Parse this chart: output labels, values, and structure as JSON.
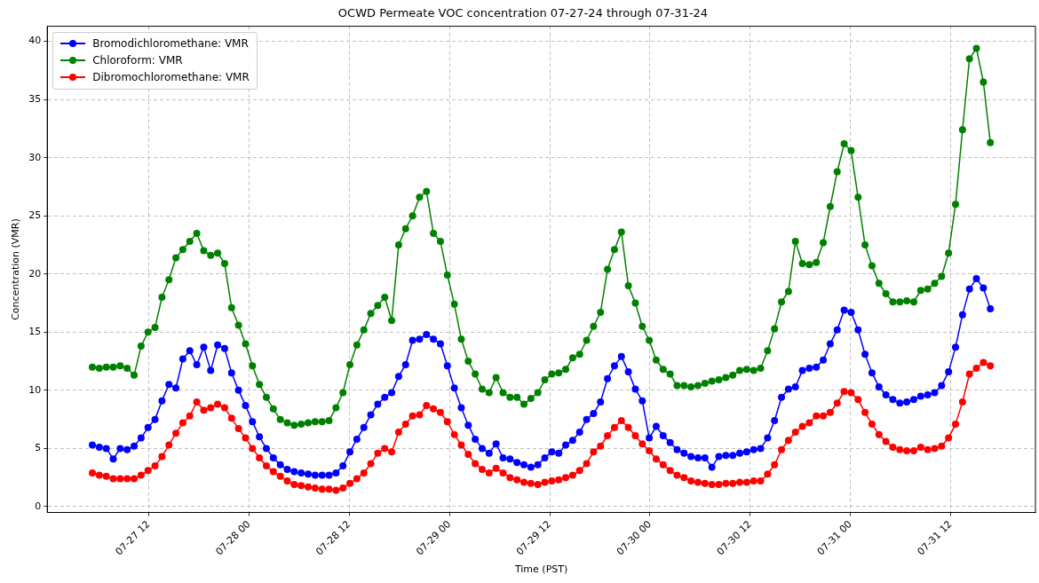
{
  "chart_data": {
    "type": "line",
    "title": "OCWD Permeate VOC concentration 07-27-24 through 07-31-24",
    "xlabel": "Time (PST)",
    "ylabel": "Concentration (VMR)",
    "x": [
      "--07-27T05:15",
      "--07-27T06:05",
      "--07-27T06:55",
      "--07-27T07:45",
      "--07-27T08:35",
      "--07-27T09:25",
      "--07-27T10:15",
      "--07-27T11:05",
      "--07-27T11:55",
      "--07-27T12:45",
      "--07-27T13:35",
      "--07-27T14:25",
      "--07-27T15:15",
      "--07-27T16:05",
      "--07-27T16:55",
      "--07-27T17:45",
      "--07-27T18:35",
      "--07-27T19:25",
      "--07-27T20:15",
      "--07-27T21:05",
      "--07-27T21:55",
      "--07-27T22:45",
      "--07-27T23:35",
      "--07-28T00:25",
      "--07-28T01:15",
      "--07-28T02:05",
      "--07-28T02:55",
      "--07-28T03:45",
      "--07-28T04:35",
      "--07-28T05:25",
      "--07-28T06:15",
      "--07-28T07:05",
      "--07-28T07:55",
      "--07-28T08:45",
      "--07-28T09:35",
      "--07-28T10:25",
      "--07-28T11:15",
      "--07-28T12:05",
      "--07-28T12:55",
      "--07-28T13:45",
      "--07-28T14:35",
      "--07-28T15:25",
      "--07-28T16:15",
      "--07-28T17:05",
      "--07-28T17:55",
      "--07-28T18:45",
      "--07-28T19:35",
      "--07-28T20:25",
      "--07-28T21:15",
      "--07-28T22:05",
      "--07-28T22:55",
      "--07-28T23:45",
      "--07-29T00:35",
      "--07-29T01:25",
      "--07-29T02:15",
      "--07-29T03:05",
      "--07-29T03:55",
      "--07-29T04:45",
      "--07-29T05:35",
      "--07-29T06:25",
      "--07-29T07:15",
      "--07-29T08:05",
      "--07-29T08:55",
      "--07-29T09:45",
      "--07-29T10:35",
      "--07-29T11:25",
      "--07-29T12:15",
      "--07-29T13:05",
      "--07-29T13:55",
      "--07-29T14:45",
      "--07-29T15:35",
      "--07-29T16:25",
      "--07-29T17:15",
      "--07-29T18:05",
      "--07-29T18:55",
      "--07-29T19:45",
      "--07-29T20:35",
      "--07-29T21:25",
      "--07-29T22:15",
      "--07-29T23:05",
      "--07-29T23:55",
      "--07-30T00:45",
      "--07-30T01:35",
      "--07-30T02:25",
      "--07-30T03:15",
      "--07-30T04:05",
      "--07-30T04:55",
      "--07-30T05:45",
      "--07-30T06:35",
      "--07-30T07:25",
      "--07-30T08:15",
      "--07-30T09:05",
      "--07-30T09:55",
      "--07-30T10:45",
      "--07-30T11:35",
      "--07-30T12:25",
      "--07-30T13:15",
      "--07-30T14:05",
      "--07-30T14:55",
      "--07-30T15:45",
      "--07-30T16:35",
      "--07-30T17:25",
      "--07-30T18:15",
      "--07-30T19:05",
      "--07-30T19:55",
      "--07-30T20:45",
      "--07-30T21:35",
      "--07-30T22:25",
      "--07-30T23:15",
      "--07-31T00:05",
      "--07-31T00:55",
      "--07-31T01:45",
      "--07-31T02:35",
      "--07-31T03:25",
      "--07-31T04:15",
      "--07-31T05:05",
      "--07-31T05:55",
      "--07-31T06:45",
      "--07-31T07:35",
      "--07-31T08:25",
      "--07-31T09:15",
      "--07-31T10:05",
      "--07-31T10:55",
      "--07-31T11:45",
      "--07-31T12:35",
      "--07-31T13:25",
      "--07-31T14:15",
      "--07-31T15:05",
      "--07-31T15:55",
      "--07-31T16:45"
    ],
    "series": [
      {
        "name": "Bromodichloromethane: VMR",
        "color": "#0000ff",
        "values": [
          5.3,
          5.1,
          5.0,
          4.1,
          5.0,
          4.9,
          5.2,
          5.9,
          6.8,
          7.5,
          9.1,
          10.5,
          10.2,
          12.7,
          13.4,
          12.2,
          13.7,
          11.7,
          13.9,
          13.6,
          11.5,
          10.0,
          8.7,
          7.3,
          6.0,
          5.0,
          4.2,
          3.6,
          3.2,
          3.0,
          2.9,
          2.8,
          2.7,
          2.7,
          2.7,
          2.9,
          3.5,
          4.7,
          5.8,
          6.8,
          7.9,
          8.8,
          9.4,
          9.8,
          11.2,
          12.2,
          14.3,
          14.4,
          14.8,
          14.4,
          14.0,
          12.1,
          10.2,
          8.5,
          7.0,
          5.8,
          5.0,
          4.6,
          5.4,
          4.2,
          4.1,
          3.8,
          3.6,
          3.4,
          3.6,
          4.2,
          4.7,
          4.6,
          5.3,
          5.7,
          6.4,
          7.5,
          8.0,
          9.0,
          11.0,
          12.1,
          12.9,
          11.6,
          10.1,
          9.1,
          5.9,
          6.9,
          6.1,
          5.5,
          4.9,
          4.6,
          4.3,
          4.2,
          4.2,
          3.4,
          4.3,
          4.4,
          4.4,
          4.6,
          4.7,
          4.9,
          5.0,
          5.9,
          7.4,
          9.4,
          10.1,
          10.3,
          11.7,
          11.9,
          12.0,
          12.6,
          14.0,
          15.2,
          16.9,
          16.7,
          15.2,
          13.1,
          11.5,
          10.3,
          9.6,
          9.2,
          8.9,
          9.0,
          9.2,
          9.5,
          9.6,
          9.8,
          10.4,
          11.6,
          13.7,
          16.5,
          18.7,
          19.6,
          18.8,
          17.0
        ]
      },
      {
        "name": "Chloroform: VMR",
        "color": "#008000",
        "values": [
          12.0,
          11.9,
          12.0,
          12.0,
          12.1,
          11.9,
          11.3,
          13.8,
          15.0,
          15.4,
          18.0,
          19.5,
          21.4,
          22.1,
          22.8,
          23.5,
          22.0,
          21.6,
          21.8,
          20.9,
          17.1,
          15.6,
          14.0,
          12.1,
          10.5,
          9.4,
          8.4,
          7.5,
          7.2,
          7.0,
          7.1,
          7.2,
          7.3,
          7.3,
          7.4,
          8.5,
          9.8,
          12.2,
          13.9,
          15.2,
          16.6,
          17.3,
          18.0,
          16.0,
          22.5,
          23.9,
          25.0,
          26.6,
          27.1,
          23.5,
          22.8,
          19.9,
          17.4,
          14.4,
          12.5,
          11.4,
          10.1,
          9.8,
          11.1,
          9.8,
          9.4,
          9.4,
          8.8,
          9.3,
          9.8,
          10.9,
          11.4,
          11.5,
          11.8,
          12.8,
          13.1,
          14.3,
          15.5,
          16.7,
          20.4,
          22.1,
          23.6,
          19.0,
          17.5,
          15.5,
          14.3,
          12.6,
          11.8,
          11.4,
          10.4,
          10.4,
          10.3,
          10.4,
          10.6,
          10.8,
          10.9,
          11.1,
          11.3,
          11.7,
          11.8,
          11.7,
          11.9,
          13.4,
          15.3,
          17.6,
          18.5,
          22.8,
          20.9,
          20.8,
          21.0,
          22.7,
          25.8,
          28.8,
          31.2,
          30.6,
          26.6,
          22.5,
          20.7,
          19.2,
          18.3,
          17.6,
          17.6,
          17.7,
          17.6,
          18.6,
          18.7,
          19.2,
          19.8,
          21.8,
          26.0,
          32.4,
          38.5,
          39.4,
          36.5,
          31.3
        ]
      },
      {
        "name": "Dibromochloromethane: VMR",
        "color": "#ff0000",
        "values": [
          2.9,
          2.7,
          2.6,
          2.4,
          2.4,
          2.4,
          2.4,
          2.7,
          3.1,
          3.5,
          4.3,
          5.3,
          6.3,
          7.2,
          7.8,
          9.0,
          8.3,
          8.5,
          8.8,
          8.5,
          7.6,
          6.7,
          5.9,
          5.0,
          4.2,
          3.5,
          3.0,
          2.6,
          2.2,
          1.9,
          1.8,
          1.7,
          1.6,
          1.5,
          1.5,
          1.4,
          1.6,
          2.0,
          2.4,
          2.9,
          3.7,
          4.6,
          5.0,
          4.7,
          6.4,
          7.1,
          7.8,
          7.9,
          8.7,
          8.4,
          8.1,
          7.3,
          6.2,
          5.3,
          4.5,
          3.7,
          3.2,
          2.9,
          3.3,
          2.9,
          2.5,
          2.3,
          2.1,
          2.0,
          1.9,
          2.1,
          2.2,
          2.3,
          2.5,
          2.7,
          3.1,
          3.7,
          4.7,
          5.2,
          6.1,
          6.8,
          7.4,
          6.8,
          6.1,
          5.4,
          4.8,
          4.1,
          3.6,
          3.1,
          2.7,
          2.5,
          2.2,
          2.1,
          2.0,
          1.9,
          1.9,
          2.0,
          2.0,
          2.1,
          2.1,
          2.2,
          2.2,
          2.8,
          3.6,
          4.9,
          5.7,
          6.4,
          6.9,
          7.2,
          7.8,
          7.8,
          8.1,
          8.9,
          9.9,
          9.8,
          9.2,
          8.1,
          7.1,
          6.2,
          5.6,
          5.1,
          4.9,
          4.8,
          4.8,
          5.1,
          4.9,
          5.0,
          5.2,
          5.9,
          7.1,
          9.0,
          11.4,
          11.9,
          12.4,
          12.1
        ]
      }
    ],
    "xlim": [
      "--07-26T23:51",
      "--07-31T22:09"
    ],
    "xticks": [
      {
        "value": "--07-27T12:00",
        "label": "07-27 12"
      },
      {
        "value": "--07-28T00:00",
        "label": "07-28 00"
      },
      {
        "value": "--07-28T12:00",
        "label": "07-28 12"
      },
      {
        "value": "--07-29T00:00",
        "label": "07-29 00"
      },
      {
        "value": "--07-29T12:00",
        "label": "07-29 12"
      },
      {
        "value": "--07-30T00:00",
        "label": "07-30 00"
      },
      {
        "value": "--07-30T12:00",
        "label": "07-30 12"
      },
      {
        "value": "--07-31T00:00",
        "label": "07-31 00"
      },
      {
        "value": "--07-31T12:00",
        "label": "07-31 12"
      }
    ],
    "ylim": [
      -0.5,
      41.3
    ],
    "yticks": [
      0,
      5,
      10,
      15,
      20,
      25,
      30,
      35,
      40
    ],
    "grid": true,
    "legend": "top left",
    "marker": "circle",
    "line_style": "solid"
  }
}
